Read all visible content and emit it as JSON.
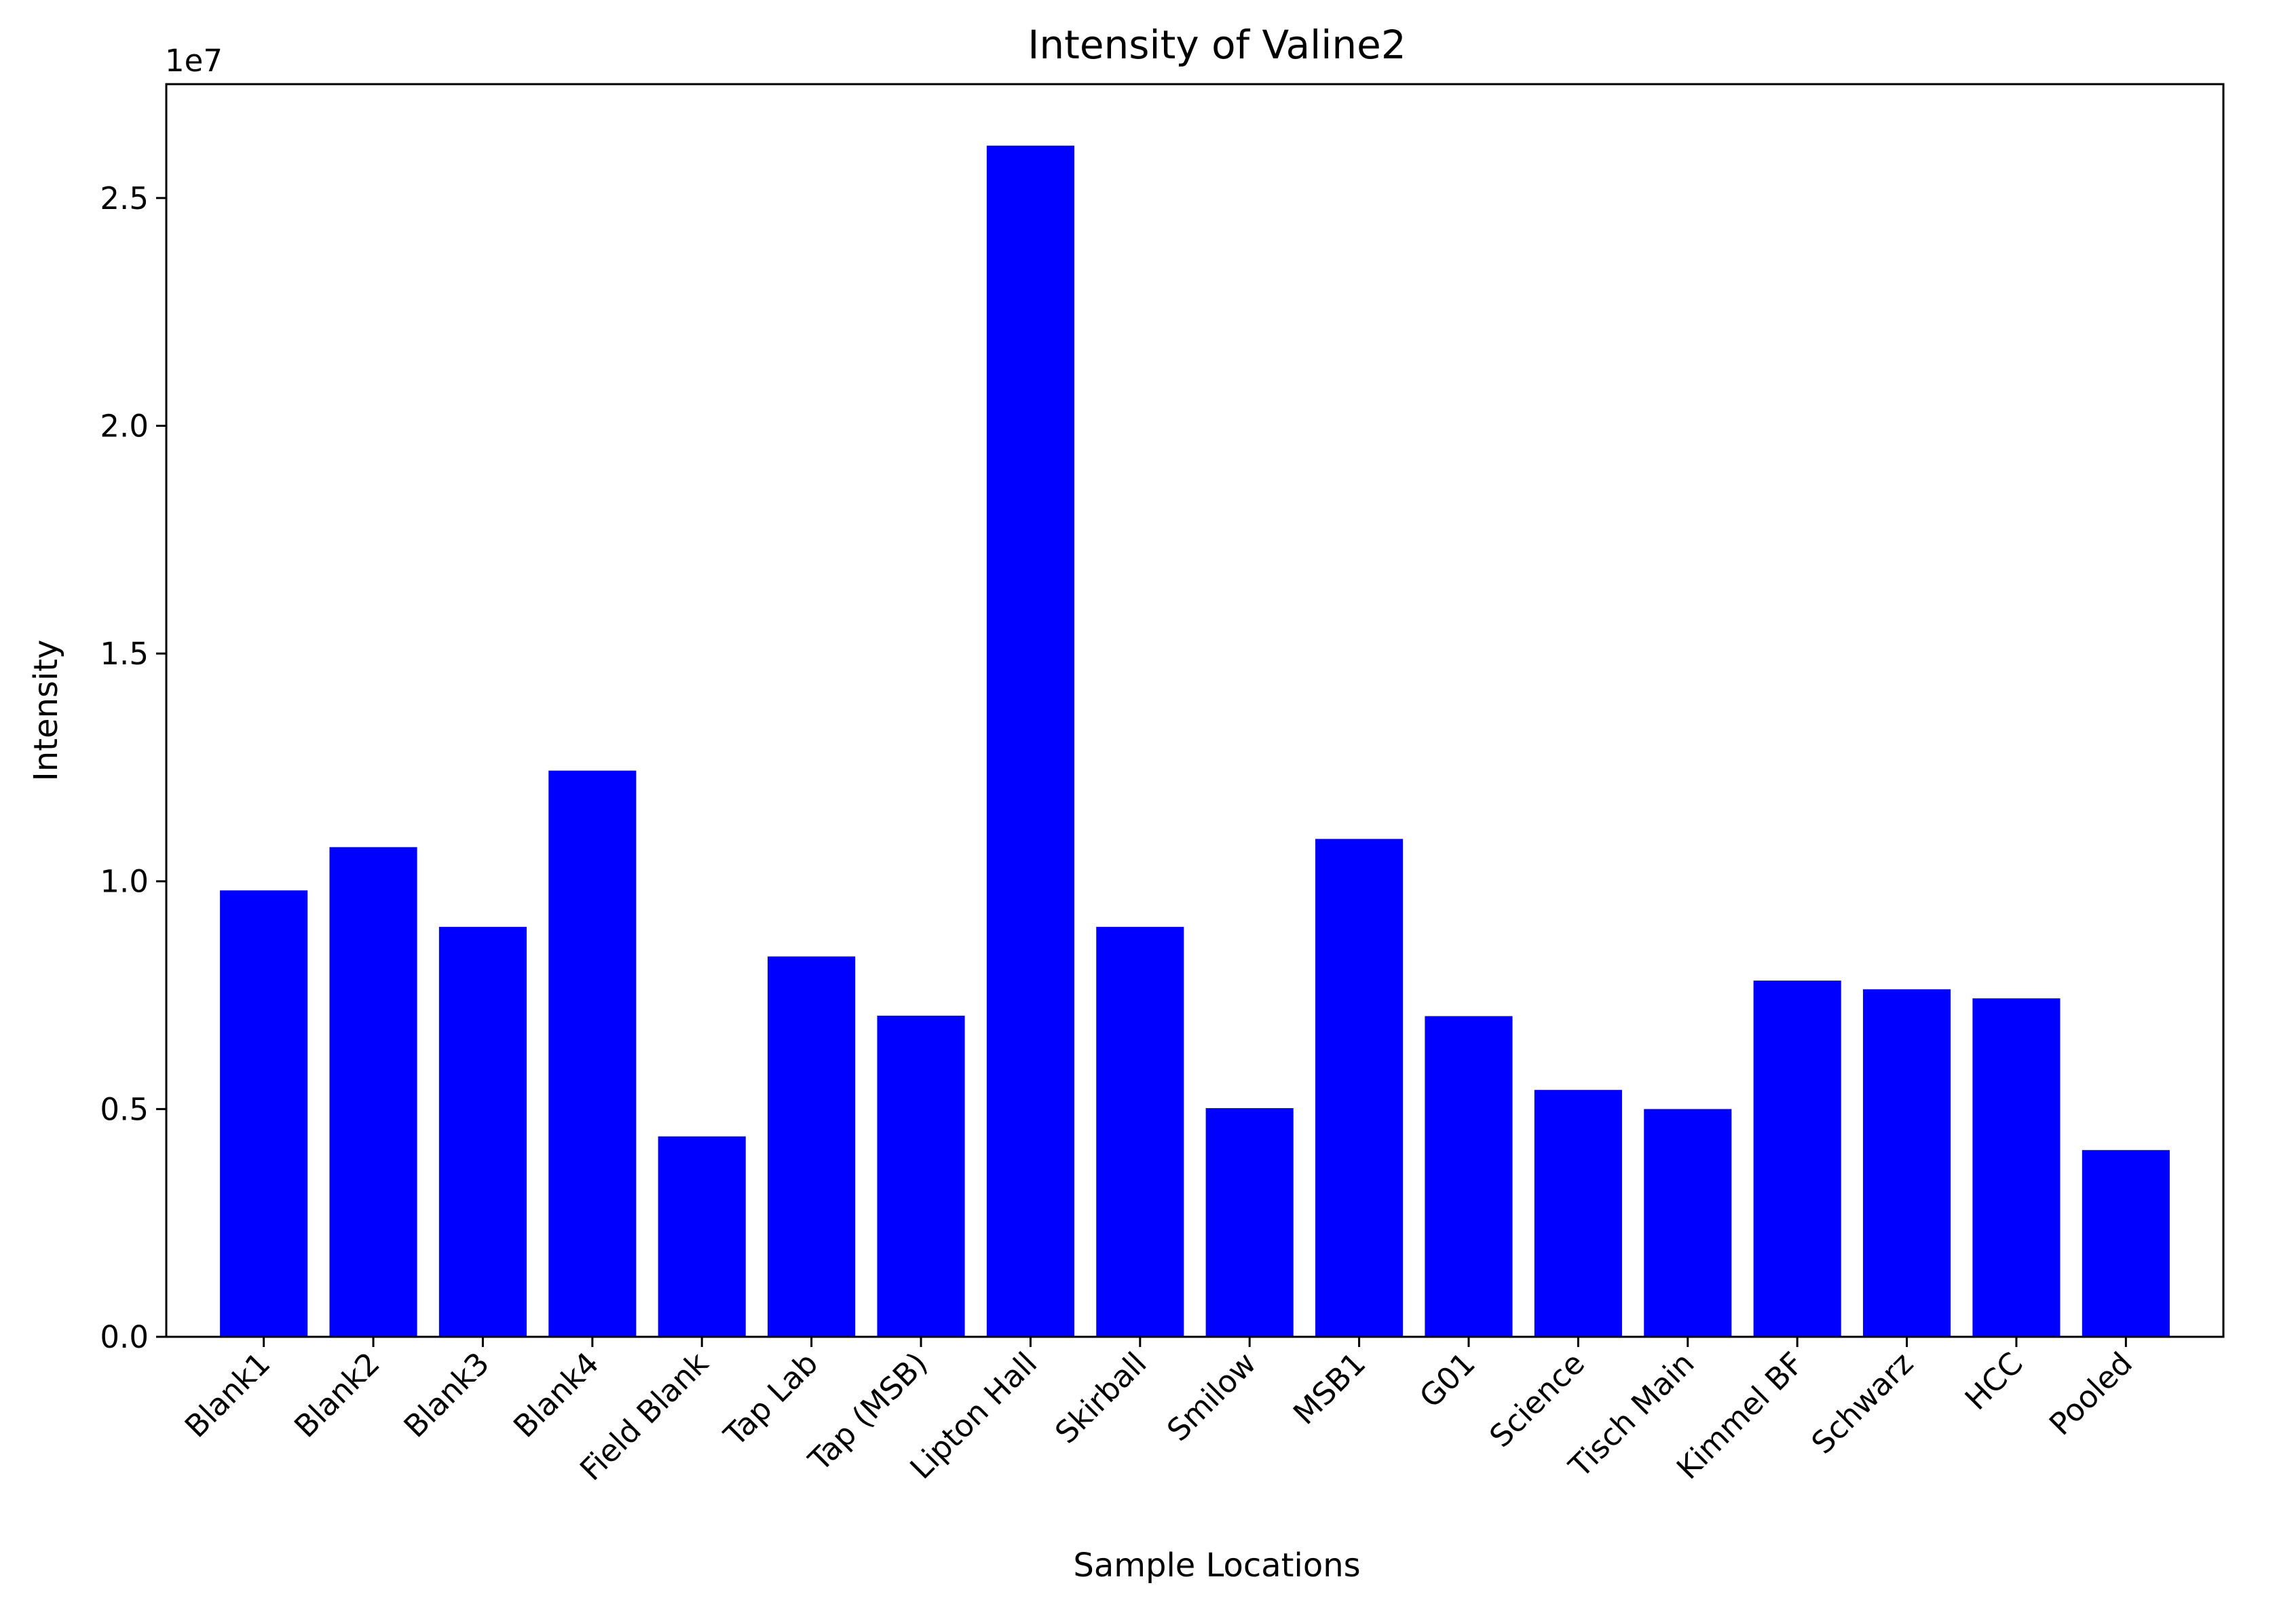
{
  "chart_data": {
    "type": "bar",
    "title": "Intensity of Valine2",
    "xlabel": "Sample Locations",
    "ylabel": "Intensity",
    "y_offset_label": "1e7",
    "y_scale": 10000000,
    "ylim": [
      0,
      27500000
    ],
    "yticks": [
      0,
      5000000,
      10000000,
      15000000,
      20000000,
      25000000
    ],
    "ytick_labels": [
      "0.0",
      "0.5",
      "1.0",
      "1.5",
      "2.0",
      "2.5"
    ],
    "bar_color": "#0000ff",
    "grid": false,
    "categories": [
      "Blank1",
      "Blank2",
      "Blank3",
      "Blank4",
      "Field Blank",
      "Tap Lab",
      "Tap (MSB)",
      "Lipton Hall",
      "Skirball",
      "Smilow",
      "MSB1",
      "G01",
      "Science",
      "Tisch Main",
      "Kimmel BF",
      "Schwarz",
      "HCC",
      "Pooled"
    ],
    "values": [
      9800000,
      10750000,
      9000000,
      12430000,
      4400000,
      8350000,
      7050000,
      26150000,
      9000000,
      5020000,
      10930000,
      7040000,
      5420000,
      5000000,
      7820000,
      7630000,
      7430000,
      4100000
    ]
  }
}
